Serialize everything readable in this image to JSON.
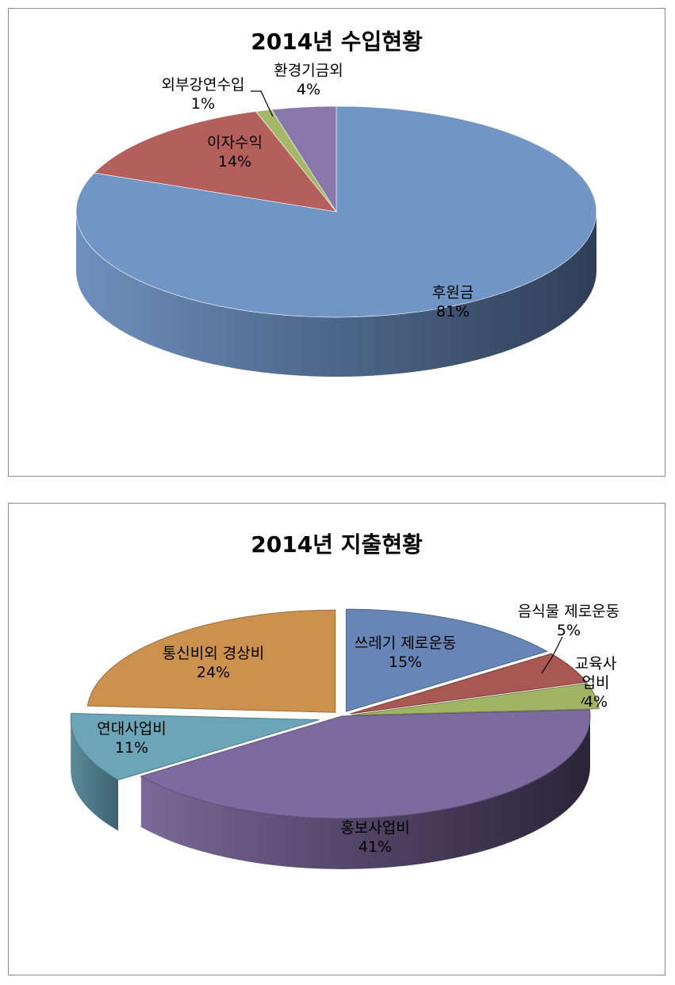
{
  "chart_data": [
    {
      "type": "pie",
      "title": "2014년 수입현황",
      "categories": [
        "후원금",
        "이자수익",
        "외부강연수입",
        "환경기금외"
      ],
      "values": [
        81,
        14,
        1,
        4
      ],
      "value_labels": [
        "81%",
        "14%",
        "1%",
        "4%"
      ],
      "colors": [
        "#7195C5",
        "#B35F5B",
        "#A4B868",
        "#8A78AA"
      ],
      "style": "3d",
      "legend": "none",
      "data_labels": "category name and percentage"
    },
    {
      "type": "pie",
      "title": "2014년 지출현황",
      "categories": [
        "쓰레기 제로운동",
        "음식물 제로운동",
        "교육사업비",
        "홍보사업비",
        "연대사업비",
        "통신비외 경상비"
      ],
      "label_lines": [
        [
          "쓰레기 제로운동"
        ],
        [
          "음식물 제로운동"
        ],
        [
          "교육사",
          "업비"
        ],
        [
          "홍보사업비"
        ],
        [
          "연대사업비"
        ],
        [
          "통신비외 경상비"
        ]
      ],
      "values": [
        15,
        5,
        4,
        41,
        11,
        24
      ],
      "value_labels": [
        "15%",
        "5%",
        "4%",
        "41%",
        "11%",
        "24%"
      ],
      "colors": [
        "#6785B7",
        "#A85752",
        "#A0B466",
        "#7D6A9E",
        "#6CA4B8",
        "#CC914E"
      ],
      "style": "3d exploded",
      "legend": "none",
      "data_labels": "category name and percentage"
    }
  ]
}
